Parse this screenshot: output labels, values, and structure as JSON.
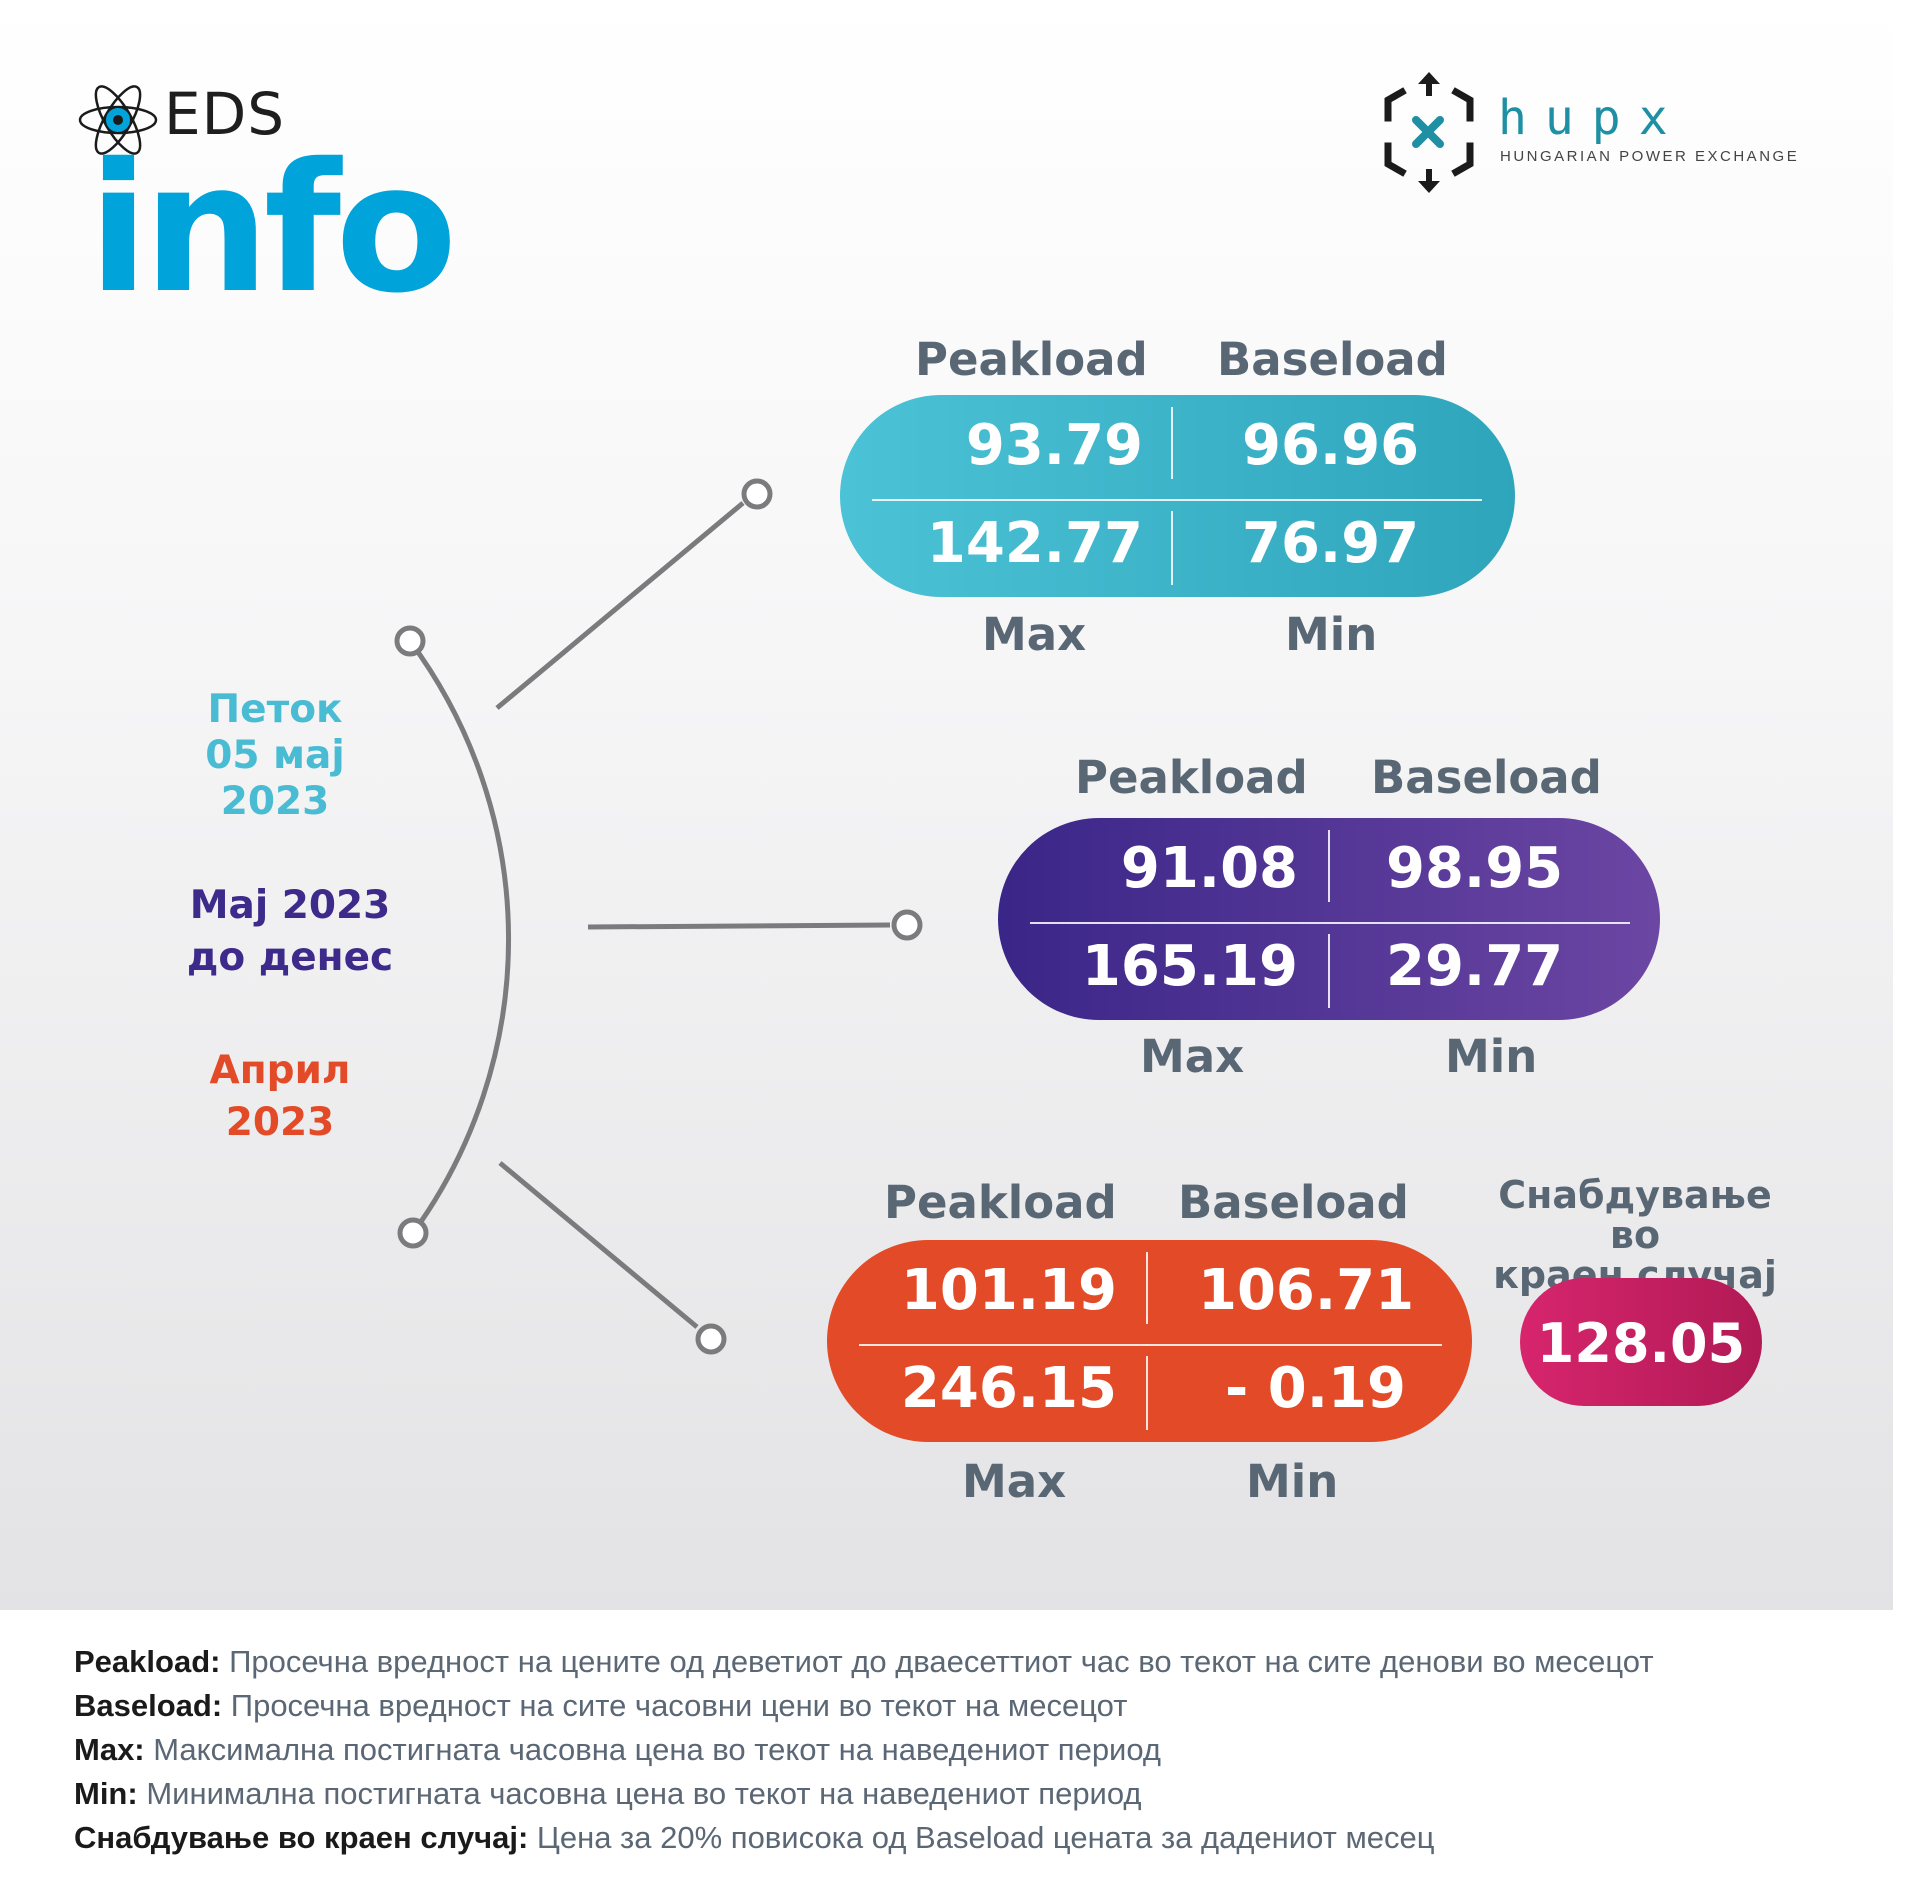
{
  "branding": {
    "eds_small": "EDS",
    "eds_big": "info",
    "hupx_word": "hupx",
    "hupx_subtitle": "HUNGARIAN POWER EXCHANGE"
  },
  "colors": {
    "day": "#49bcd4",
    "month": "#3d2a8a",
    "previous_month": "#e24a28",
    "last_resort": "#c21f60",
    "eds_blue": "#00a3da",
    "hupx_teal": "#1f8fa4"
  },
  "periods": [
    {
      "label_lines": [
        "Петок",
        "05 мај",
        "2023"
      ]
    },
    {
      "label_lines": [
        "Мај 2023",
        "до денес"
      ]
    },
    {
      "label_lines": [
        "Април",
        "2023"
      ]
    }
  ],
  "blocks": [
    {
      "header_peak": "Peakload",
      "header_base": "Baseload",
      "peakload": "93.79",
      "baseload": "96.96",
      "max": "142.77",
      "min": "76.97",
      "footer_max": "Max",
      "footer_min": "Min"
    },
    {
      "header_peak": "Peakload",
      "header_base": "Baseload",
      "peakload": "91.08",
      "baseload": "98.95",
      "max": "165.19",
      "min": "29.77",
      "footer_max": "Max",
      "footer_min": "Min"
    },
    {
      "header_peak": "Peakload",
      "header_base": "Baseload",
      "peakload": "101.19",
      "baseload": "106.71",
      "max": "246.15",
      "min": "- 0.19",
      "footer_max": "Max",
      "footer_min": "Min"
    }
  ],
  "last_resort": {
    "title_lines": [
      "Снабдување во",
      "краен случај"
    ],
    "value": "128.05"
  },
  "legend": [
    {
      "term": "Peakload:",
      "text": "Просечна вредност на цените од деветиот до дваесеттиот час во текот на сите денови во месецот"
    },
    {
      "term": "Baseload:",
      "text": "Просечна вредност на сите часовни цени во текот на месецот"
    },
    {
      "term": "Max:",
      "text": "Максимална постигната часовна цена во текот на наведениот период"
    },
    {
      "term": "Min:",
      "text": "Минимална постигната часовна цена во текот на наведениот период"
    },
    {
      "term": "Снабдување во краен случај:",
      "text": "Цена за 20% повисока од Baseload цената за дадениот месец"
    }
  ]
}
